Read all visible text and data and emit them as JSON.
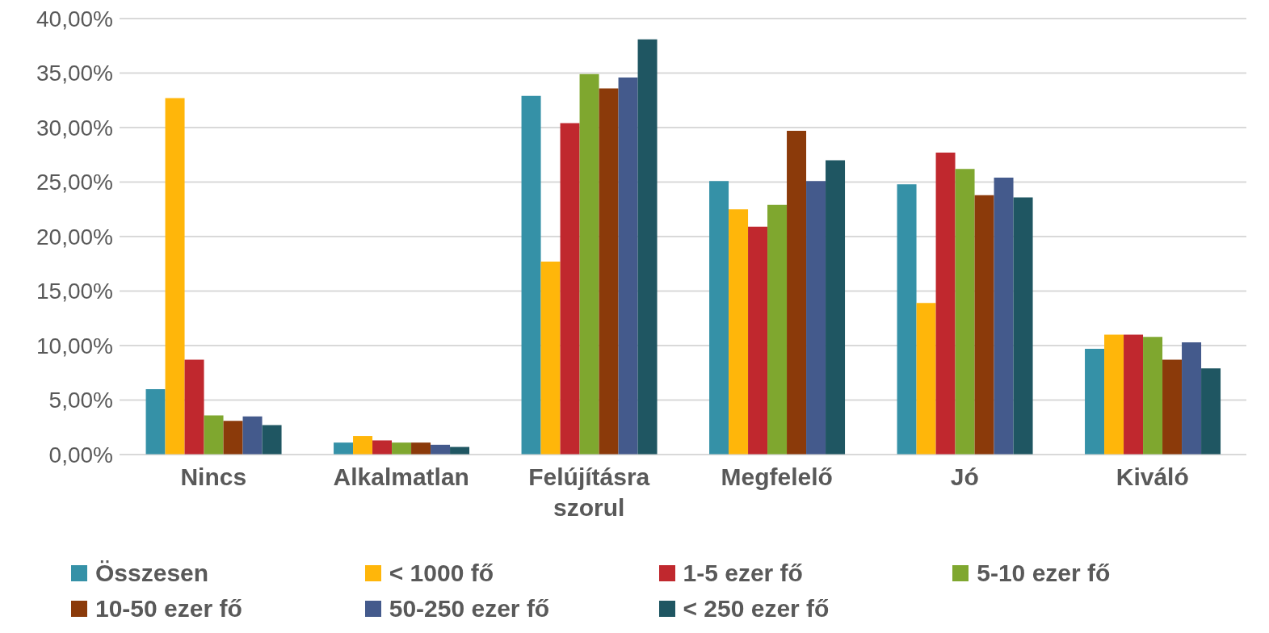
{
  "chart_data": {
    "type": "bar",
    "categories": [
      "Nincs",
      "Alkalmatlan",
      "Felújításra szorul",
      "Megfelelő",
      "Jó",
      "Kiváló"
    ],
    "series": [
      {
        "name": "Összesen",
        "color": "#3591a7",
        "values": [
          6.0,
          1.1,
          32.9,
          25.1,
          24.8,
          9.7
        ]
      },
      {
        "name": "< 1000 fő",
        "color": "#ffb60a",
        "values": [
          32.7,
          1.7,
          17.7,
          22.5,
          13.9,
          11.0
        ]
      },
      {
        "name": "1-5 ezer fő",
        "color": "#c0282e",
        "values": [
          8.7,
          1.3,
          30.4,
          20.9,
          27.7,
          11.0
        ]
      },
      {
        "name": "5-10 ezer fő",
        "color": "#7fa72f",
        "values": [
          3.6,
          1.1,
          34.9,
          22.9,
          26.2,
          10.8
        ]
      },
      {
        "name": "10-50 ezer fő",
        "color": "#8b3a0a",
        "values": [
          3.1,
          1.1,
          33.6,
          29.7,
          23.8,
          8.7
        ]
      },
      {
        "name": "50-250 ezer fő",
        "color": "#445a8c",
        "values": [
          3.5,
          0.9,
          34.6,
          25.1,
          25.4,
          10.3
        ]
      },
      {
        "name": "< 250 ezer fő",
        "color": "#1f5662",
        "values": [
          2.7,
          0.7,
          38.1,
          27.0,
          23.6,
          7.9
        ]
      }
    ],
    "ylim": [
      0,
      40
    ],
    "yticks": [
      {
        "value": 0,
        "label": "0,00%"
      },
      {
        "value": 5,
        "label": "5,00%"
      },
      {
        "value": 10,
        "label": "10,00%"
      },
      {
        "value": 15,
        "label": "15,00%"
      },
      {
        "value": 20,
        "label": "20,00%"
      },
      {
        "value": 25,
        "label": "25,00%"
      },
      {
        "value": 30,
        "label": "30,00%"
      },
      {
        "value": 35,
        "label": "35,00%"
      },
      {
        "value": 40,
        "label": "40,00%"
      }
    ],
    "grid": "y",
    "legend": "bottom"
  }
}
